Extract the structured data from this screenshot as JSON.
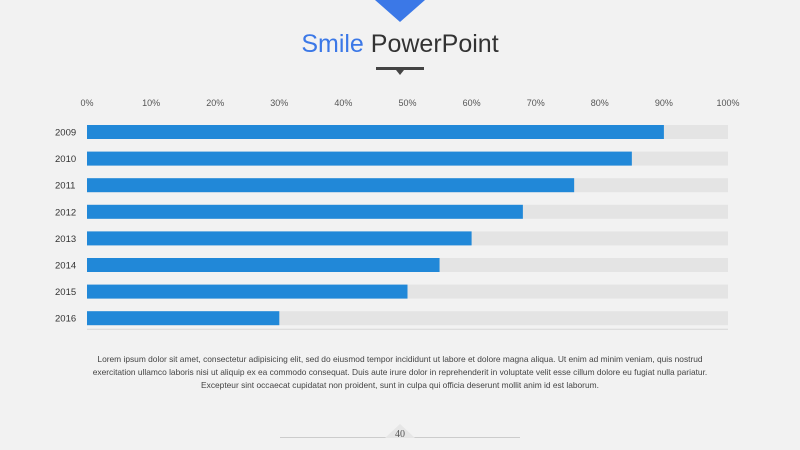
{
  "slide": {
    "title_accent": "Smile",
    "title_main": "PowerPoint",
    "paragraph": "Lorem ipsum dolor sit amet, consectetur adipisicing elit, sed do eiusmod tempor incididunt ut labore et dolore magna aliqua. Ut enim ad minim veniam, quis nostrud exercitation ullamco laboris nisi ut aliquip ex ea commodo consequat. Duis aute irure dolor in reprehenderit in voluptate velit esse cillum dolore eu fugiat nulla pariatur. Excepteur sint occaecat cupidatat non proident, sunt in culpa qui officia deserunt mollit anim id est laborum.",
    "page_number": "40"
  },
  "colors": {
    "accent": "#3b78e7",
    "bar": "#2188d8",
    "track": "#e4e4e4",
    "background": "#f2f2f2"
  },
  "chart_data": {
    "type": "bar",
    "orientation": "horizontal",
    "categories": [
      "2009",
      "2010",
      "2011",
      "2012",
      "2013",
      "2014",
      "2015",
      "2016"
    ],
    "values": [
      90,
      85,
      76,
      68,
      60,
      55,
      50,
      30
    ],
    "xlim": [
      0,
      100
    ],
    "xticks": [
      "0%",
      "10%",
      "20%",
      "30%",
      "40%",
      "50%",
      "60%",
      "70%",
      "80%",
      "90%",
      "100%"
    ],
    "background_track": true,
    "grid": false,
    "legend": "none"
  }
}
